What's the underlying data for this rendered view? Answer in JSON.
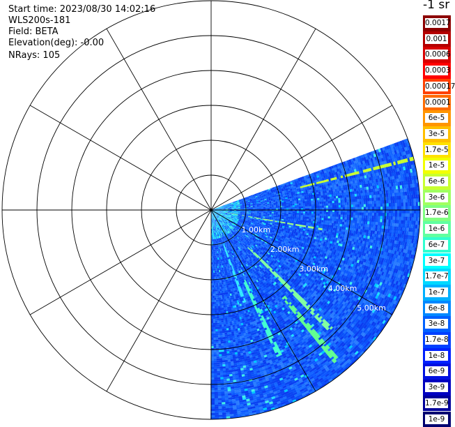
{
  "header": {
    "start_time": "Start time: 2023/08/30 14:02:16",
    "instrument": "WLS200s-181",
    "field": "Field: BETA",
    "elevation": "Elevation(deg): -0.00",
    "nrays": "NRays: 105"
  },
  "chart_data": {
    "type": "heatmap",
    "projection": "polar (PPI scan)",
    "field": "BETA",
    "elevation_deg": 0.0,
    "nrays": 105,
    "range_rings_km": [
      1.0,
      2.0,
      3.0,
      4.0,
      5.0
    ],
    "range_labels": [
      "1.00km",
      "2.00km",
      "3.00km",
      "4.00km",
      "5.00km"
    ],
    "max_range_km": 6.0,
    "azimuth_spokes_deg": [
      0,
      30,
      60,
      90,
      120,
      150,
      180,
      210,
      240,
      270,
      300,
      330
    ],
    "data_azimuth_range_deg": [
      70,
      180
    ],
    "background_level": "1e-8 to 1.7e-8",
    "colorscale": {
      "title": "-1 sr",
      "labels": [
        "0.0017",
        "0.001",
        "0.0006",
        "0.0003",
        "0.00017",
        "0.0001",
        "6e-5",
        "3e-5",
        "1.7e-5",
        "1e-5",
        "6e-6",
        "3e-6",
        "1.7e-6",
        "1e-6",
        "6e-7",
        "3e-7",
        "1.7e-7",
        "1e-7",
        "6e-8",
        "3e-8",
        "1.7e-8",
        "1e-8",
        "6e-9",
        "3e-9",
        "1.7e-9",
        "1e-9"
      ],
      "colors": [
        "#8c0000",
        "#b40000",
        "#d80000",
        "#ff0000",
        "#ff4000",
        "#ff6a00",
        "#ff9500",
        "#ffbf00",
        "#ffe100",
        "#f2ff00",
        "#c8ff30",
        "#a0ff60",
        "#80ff80",
        "#60ffa0",
        "#30ffd0",
        "#00ffff",
        "#00d8ff",
        "#00b0ff",
        "#0088ff",
        "#0060ff",
        "#0040ff",
        "#0020ff",
        "#0010e0",
        "#0000c0",
        "#00009a",
        "#000070"
      ]
    }
  }
}
